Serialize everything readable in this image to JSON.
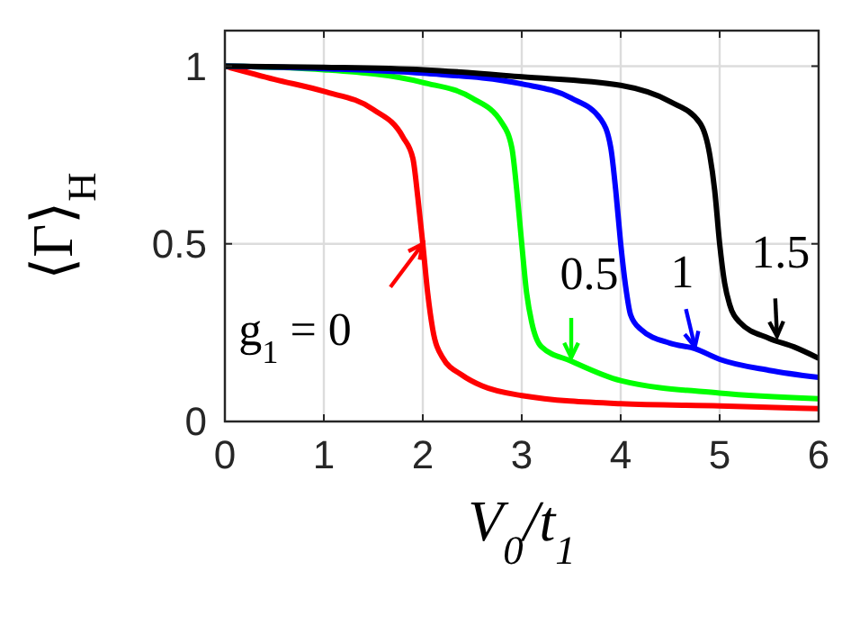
{
  "chart_data": {
    "type": "line",
    "xlabel": "V$_{0}$/t$_{1}$",
    "ylabel": "⟨Γ⟩$_{H}$",
    "xlim": [
      0,
      6
    ],
    "ylim": [
      0,
      1.1
    ],
    "xticks": [
      0,
      1,
      2,
      3,
      4,
      5,
      6
    ],
    "yticks": [
      0,
      0.5,
      1
    ],
    "grid": true,
    "line_style": "solid",
    "series": [
      {
        "color": "#ff0000",
        "x": [
          0,
          0.5,
          1,
          1.5,
          1.8,
          1.9,
          1.95,
          2,
          2.05,
          2.1,
          2.2,
          2.4,
          2.6,
          3,
          4,
          5,
          6
        ],
        "values": [
          1,
          0.963,
          0.929,
          0.878,
          0.8,
          0.74,
          0.63,
          0.5,
          0.36,
          0.26,
          0.18,
          0.13,
          0.1,
          0.073,
          0.05,
          0.044,
          0.036
        ]
      },
      {
        "color": "#00ff00",
        "x": [
          0,
          1,
          2,
          2.5,
          2.8,
          2.9,
          2.95,
          3,
          3.05,
          3.1,
          3.2,
          3.5,
          4,
          5,
          6
        ],
        "values": [
          1,
          0.99,
          0.954,
          0.91,
          0.84,
          0.77,
          0.65,
          0.5,
          0.36,
          0.28,
          0.21,
          0.17,
          0.115,
          0.08,
          0.064
        ]
      },
      {
        "color": "#0000ff",
        "x": [
          0,
          1,
          2,
          3,
          3.5,
          3.8,
          3.9,
          3.95,
          4,
          4.05,
          4.1,
          4.2,
          4.5,
          4.75,
          5,
          5.5,
          6
        ],
        "values": [
          1,
          0.993,
          0.98,
          0.95,
          0.91,
          0.85,
          0.77,
          0.65,
          0.5,
          0.38,
          0.3,
          0.26,
          0.22,
          0.205,
          0.175,
          0.144,
          0.124
        ]
      },
      {
        "color": "#000000",
        "x": [
          0,
          1,
          2,
          3,
          4,
          4.5,
          4.8,
          4.9,
          4.95,
          5,
          5.05,
          5.1,
          5.2,
          5.5,
          5.75,
          6
        ],
        "values": [
          1,
          0.997,
          0.99,
          0.97,
          0.946,
          0.9,
          0.84,
          0.75,
          0.65,
          0.5,
          0.39,
          0.33,
          0.28,
          0.234,
          0.21,
          0.178
        ]
      }
    ],
    "annotations": [
      {
        "text": "g$_{1}$ = 0",
        "x": 2,
        "y": 0.5
      },
      {
        "text": "0.5",
        "x": 3.5,
        "y": 0.18
      },
      {
        "text": "1",
        "x": 4.75,
        "y": 0.21
      },
      {
        "text": "1.5",
        "x": 5.58,
        "y": 0.24
      }
    ]
  }
}
